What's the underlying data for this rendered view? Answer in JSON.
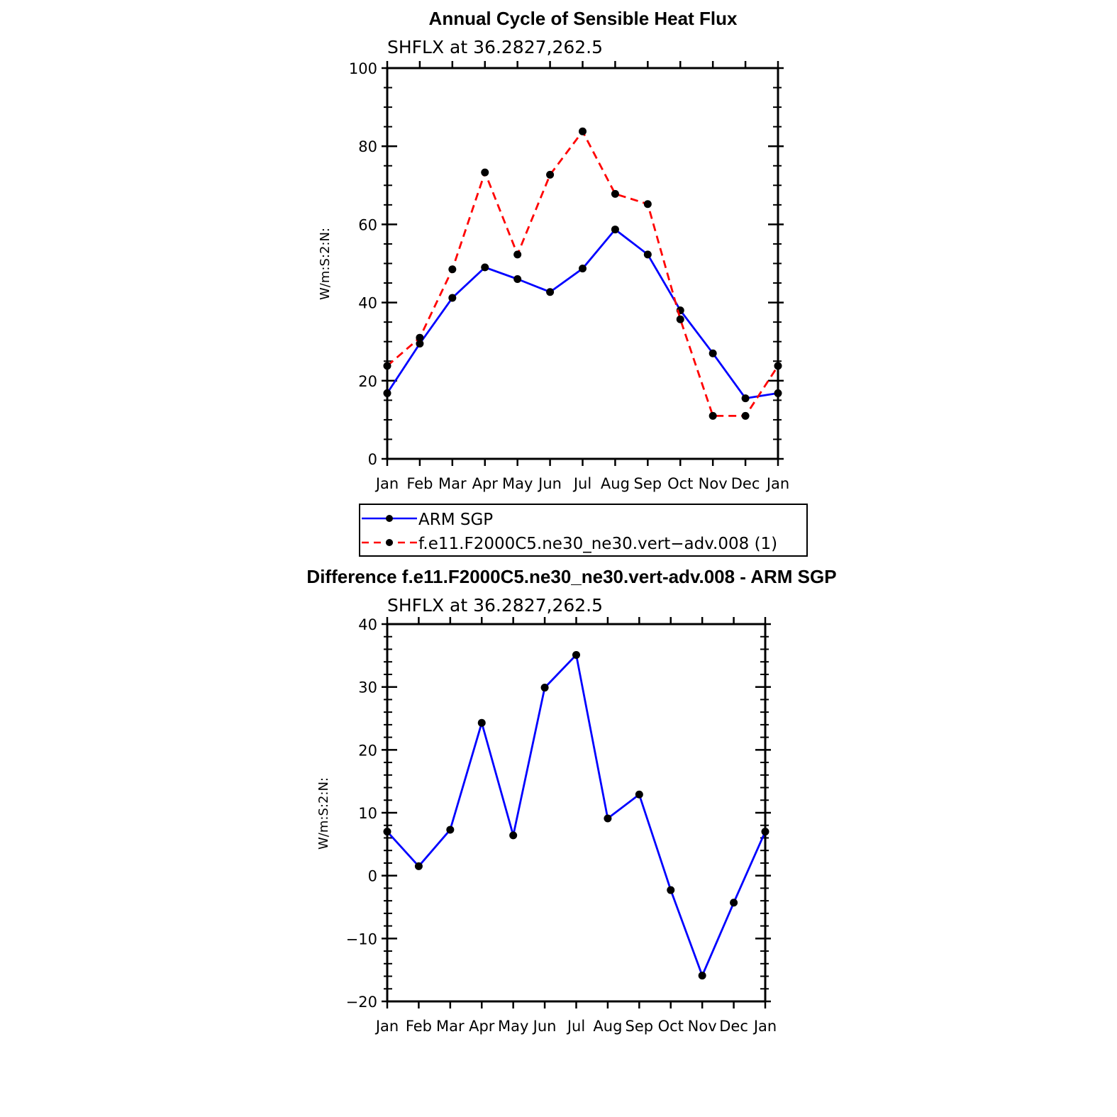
{
  "colors": {
    "obs": "#0000ff",
    "model": "#ff0000",
    "marker": "#000000"
  },
  "chart_data": [
    {
      "type": "line",
      "title": "Annual Cycle of Sensible Heat Flux",
      "subtitle": "SHFLX at 36.2827,262.5",
      "ylabel": "W/m:S:2:N:",
      "ylim": [
        0,
        100
      ],
      "yticks": [
        0,
        20,
        40,
        60,
        80,
        100
      ],
      "ytick_labels": [
        "0",
        "20",
        "40",
        "60",
        "80",
        "100"
      ],
      "categories": [
        "Jan",
        "Feb",
        "Mar",
        "Apr",
        "May",
        "Jun",
        "Jul",
        "Aug",
        "Sep",
        "Oct",
        "Nov",
        "Dec",
        "Jan"
      ],
      "series": [
        {
          "name": "ARM SGP",
          "style": "solid",
          "color": "#0000ff",
          "values": [
            16.8,
            29.5,
            41.2,
            49.0,
            46.0,
            42.7,
            48.7,
            58.7,
            52.3,
            38.0,
            27.0,
            15.5,
            16.8
          ]
        },
        {
          "name": "f.e11.F2000C5.ne30_ne30.vert−adv.008 (1)",
          "style": "dashed",
          "color": "#ff0000",
          "values": [
            23.8,
            31.0,
            48.5,
            73.3,
            52.3,
            72.7,
            83.8,
            67.8,
            65.2,
            35.7,
            11.0,
            11.0,
            23.8
          ]
        }
      ],
      "legend": {
        "position": "below",
        "entries": [
          "ARM SGP",
          "f.e11.F2000C5.ne30_ne30.vert−adv.008 (1)"
        ]
      }
    },
    {
      "type": "line",
      "title": "Difference f.e11.F2000C5.ne30_ne30.vert-adv.008 - ARM SGP",
      "subtitle": "SHFLX at 36.2827,262.5",
      "ylabel": "W/m:S:2:N:",
      "ylim": [
        -20,
        40
      ],
      "yticks": [
        -20,
        -10,
        0,
        10,
        20,
        30,
        40
      ],
      "ytick_labels": [
        "−20",
        "−10",
        "0",
        "10",
        "20",
        "30",
        "40"
      ],
      "categories": [
        "Jan",
        "Feb",
        "Mar",
        "Apr",
        "May",
        "Jun",
        "Jul",
        "Aug",
        "Sep",
        "Oct",
        "Nov",
        "Dec",
        "Jan"
      ],
      "series": [
        {
          "name": "difference",
          "style": "solid",
          "color": "#0000ff",
          "values": [
            7.0,
            1.5,
            7.3,
            24.3,
            6.4,
            29.9,
            35.1,
            9.1,
            12.9,
            -2.3,
            -15.9,
            -4.3,
            7.0
          ]
        }
      ]
    }
  ]
}
